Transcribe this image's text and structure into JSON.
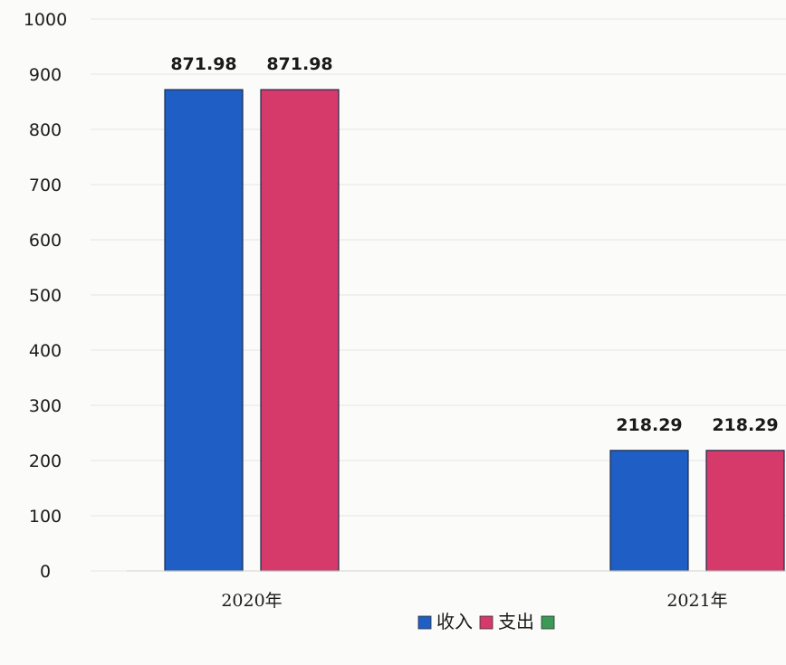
{
  "chart_data": {
    "type": "bar",
    "categories": [
      "2020年",
      "2021年"
    ],
    "series": [
      {
        "name": "收入",
        "values": [
          871.98,
          218.29
        ],
        "color": "#1f5ec4"
      },
      {
        "name": "支出",
        "values": [
          871.98,
          218.29
        ],
        "color": "#d63a6a"
      },
      {
        "name": "",
        "values": [
          0,
          0
        ],
        "color": "#3b9a55"
      }
    ],
    "data_labels": [
      [
        "871.98",
        "218.29"
      ],
      [
        "871.98",
        "218.29"
      ]
    ],
    "ylim": [
      0,
      1000
    ],
    "yticks": [
      0,
      100,
      200,
      300,
      400,
      500,
      600,
      700,
      800,
      900,
      1000
    ],
    "title": "",
    "xlabel": "",
    "ylabel": "",
    "grid": true,
    "legend_position": "bottom-center"
  }
}
